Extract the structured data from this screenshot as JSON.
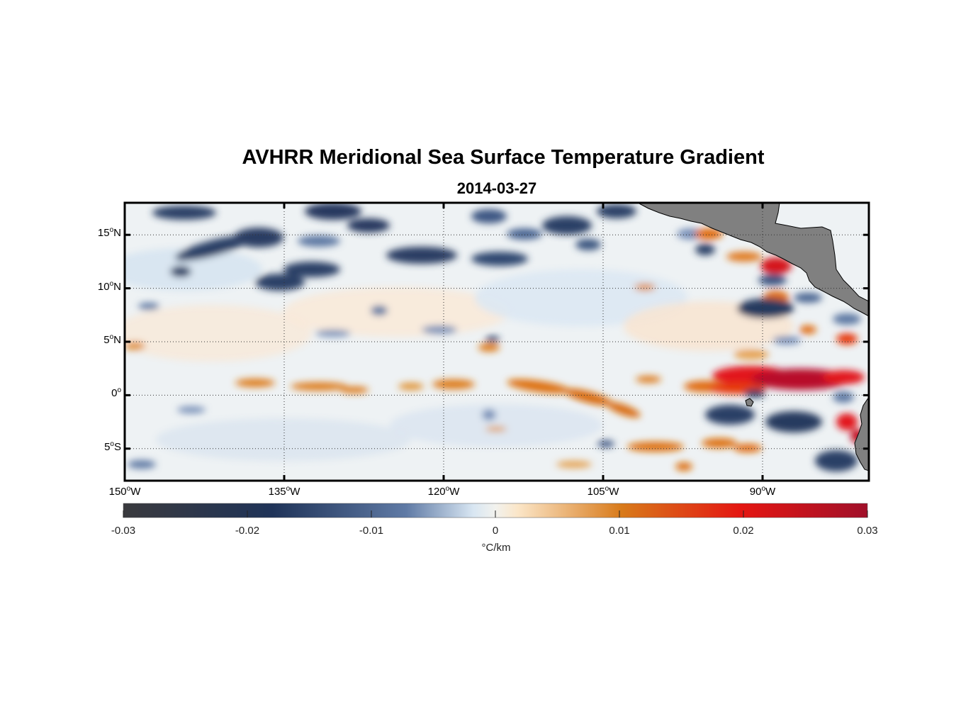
{
  "title": "AVHRR Meridional Sea Surface Temperature Gradient",
  "subtitle": "2014-03-27",
  "map": {
    "lon_range": [
      -150,
      -80
    ],
    "lat_range": [
      -8,
      18
    ],
    "lon_ticks": [
      {
        "value": -150,
        "deg": "150",
        "hemi": "W"
      },
      {
        "value": -135,
        "deg": "135",
        "hemi": "W"
      },
      {
        "value": -120,
        "deg": "120",
        "hemi": "W"
      },
      {
        "value": -105,
        "deg": "105",
        "hemi": "W"
      },
      {
        "value": -90,
        "deg": "90",
        "hemi": "W"
      }
    ],
    "lat_ticks": [
      {
        "value": 15,
        "deg": "15",
        "hemi": "N"
      },
      {
        "value": 10,
        "deg": "10",
        "hemi": "N"
      },
      {
        "value": 5,
        "deg": "5",
        "hemi": "N"
      },
      {
        "value": 0,
        "deg": "0",
        "hemi": ""
      },
      {
        "value": -5,
        "deg": "5",
        "hemi": "S"
      }
    ],
    "land_color": "#808080"
  },
  "colorbar": {
    "range": [
      -0.03,
      0.03
    ],
    "ticks": [
      "-0.03",
      "-0.02",
      "-0.01",
      "0",
      "0.01",
      "0.02",
      "0.03"
    ],
    "label": "°C/km",
    "colors": [
      "#3a3a3e",
      "#1f3358",
      "#5f7aa5",
      "#d8e6f2",
      "#fbe6c8",
      "#d87a1a",
      "#e41612",
      "#a0102a"
    ]
  }
}
